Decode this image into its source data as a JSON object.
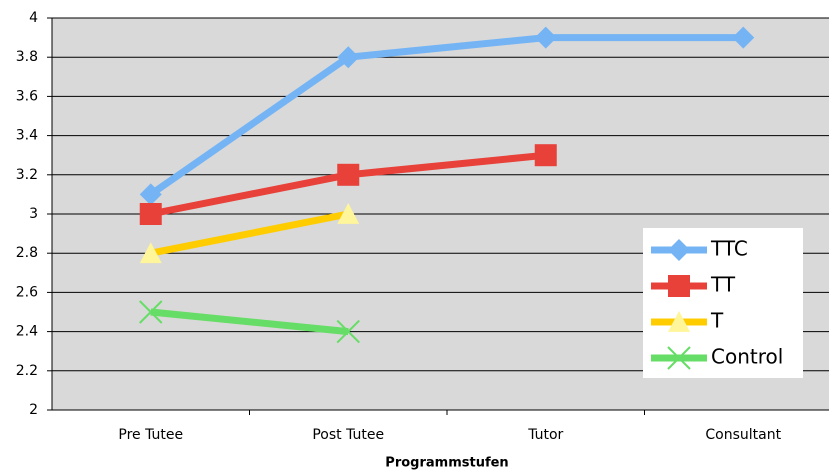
{
  "chart_data": {
    "type": "line",
    "x_label": "Programmstufen",
    "categories": [
      "Pre Tutee",
      "Post Tutee",
      "Tutor",
      "Consultant"
    ],
    "series": [
      {
        "name": "TTC",
        "color": "#74b4f5",
        "marker": "diamond",
        "values": [
          3.1,
          3.8,
          3.9,
          3.9
        ]
      },
      {
        "name": "TT",
        "color": "#e8413a",
        "marker": "square",
        "values": [
          3.0,
          3.2,
          3.3,
          null
        ]
      },
      {
        "name": "T",
        "color": "#ffcc00",
        "marker": "triangle",
        "values": [
          2.8,
          3.0,
          null,
          null
        ]
      },
      {
        "name": "Control",
        "color": "#66dd66",
        "marker": "x",
        "values": [
          2.5,
          2.4,
          null,
          null
        ]
      }
    ],
    "ylim": [
      2,
      4
    ],
    "yticks": [
      2,
      2.2,
      2.4,
      2.6,
      2.8,
      3,
      3.2,
      3.4,
      3.6,
      3.8,
      4
    ],
    "grid": true,
    "legend": "lower right"
  }
}
